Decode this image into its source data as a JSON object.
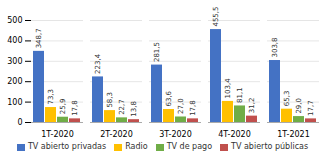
{
  "chart_data": {
    "type": "bar",
    "categories": [
      "1T-2020",
      "2T-2020",
      "3T-2020",
      "4T-2020",
      "1T-2021"
    ],
    "series": [
      {
        "name": "TV abierto privadas",
        "color": "#4472C4",
        "values": [
          348.7,
          223.4,
          281.5,
          455.5,
          303.8
        ],
        "value_labels": [
          "348,7",
          "223,4",
          "281,5",
          "455,5",
          "303,8"
        ]
      },
      {
        "name": "Radio",
        "color": "#FFC000",
        "values": [
          73.3,
          58.3,
          63.6,
          103.4,
          65.3
        ],
        "value_labels": [
          "73,3",
          "58,3",
          "63,6",
          "103,4",
          "65,3"
        ]
      },
      {
        "name": "TV de pago",
        "color": "#70AD47",
        "values": [
          25.9,
          22.7,
          27.0,
          81.1,
          29.0
        ],
        "value_labels": [
          "25,9",
          "22,7",
          "27,0",
          "81,1",
          "29,0"
        ]
      },
      {
        "name": "TV abierto públicas",
        "color": "#C0504D",
        "values": [
          17.8,
          13.8,
          17.8,
          31.2,
          17.7
        ],
        "value_labels": [
          "17,8",
          "13,8",
          "17,8",
          "31,2",
          "17,7"
        ]
      }
    ],
    "ylim": [
      0,
      500
    ],
    "yticks": [
      0,
      100,
      200,
      300,
      400,
      500
    ],
    "grid": true,
    "legend": "bottom",
    "data_labels": true
  }
}
